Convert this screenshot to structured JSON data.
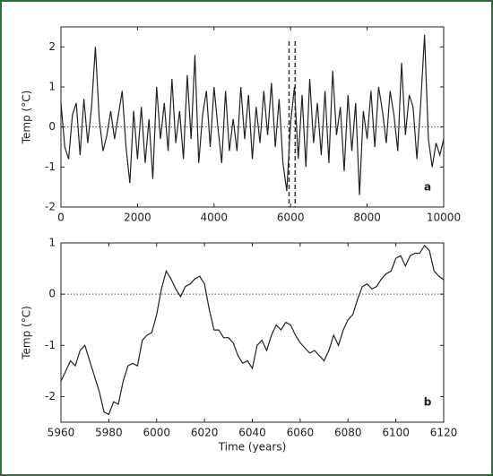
{
  "chart_data": [
    {
      "type": "line",
      "ylabel": "Temp (°C)",
      "panel_label": "a",
      "color": "#222222",
      "x": [
        0,
        100,
        200,
        300,
        400,
        500,
        600,
        700,
        800,
        900,
        1000,
        1100,
        1200,
        1300,
        1400,
        1500,
        1600,
        1700,
        1800,
        1900,
        2000,
        2100,
        2200,
        2300,
        2400,
        2500,
        2600,
        2700,
        2800,
        2900,
        3000,
        3100,
        3200,
        3300,
        3400,
        3500,
        3600,
        3700,
        3800,
        3900,
        4000,
        4100,
        4200,
        4300,
        4400,
        4500,
        4600,
        4700,
        4800,
        4900,
        5000,
        5100,
        5200,
        5300,
        5400,
        5500,
        5600,
        5700,
        5800,
        5900,
        6000,
        6100,
        6200,
        6300,
        6400,
        6500,
        6600,
        6700,
        6800,
        6900,
        7000,
        7100,
        7200,
        7300,
        7400,
        7500,
        7600,
        7700,
        7800,
        7900,
        8000,
        8100,
        8200,
        8300,
        8400,
        8500,
        8600,
        8700,
        8800,
        8900,
        9000,
        9100,
        9200,
        9300,
        9400,
        9500,
        9600,
        9700,
        9800,
        9900,
        10000
      ],
      "values": [
        0.6,
        -0.5,
        -0.8,
        0.3,
        0.6,
        -0.7,
        0.7,
        -0.4,
        0.5,
        2.0,
        0.2,
        -0.6,
        -0.2,
        0.4,
        -0.3,
        0.3,
        0.9,
        -0.5,
        -1.4,
        0.4,
        -0.8,
        0.5,
        -0.9,
        0.2,
        -1.3,
        1.0,
        -0.3,
        0.6,
        -0.6,
        1.2,
        -0.4,
        0.4,
        -0.8,
        1.3,
        -0.3,
        1.8,
        -0.9,
        0.3,
        0.9,
        -0.5,
        1.0,
        0.0,
        -0.9,
        0.9,
        -0.6,
        0.2,
        -0.6,
        1.0,
        -0.3,
        0.8,
        -0.8,
        0.5,
        -0.4,
        0.9,
        -0.2,
        1.1,
        -0.5,
        0.7,
        -0.9,
        -1.6,
        0.1,
        1.0,
        -0.8,
        0.8,
        -1.0,
        1.2,
        -0.4,
        0.6,
        -0.7,
        0.9,
        -0.9,
        1.4,
        -0.2,
        0.5,
        -1.1,
        0.8,
        -0.6,
        0.6,
        -1.7,
        0.4,
        -0.3,
        0.9,
        -0.5,
        1.0,
        0.4,
        -0.4,
        0.9,
        0.3,
        -0.6,
        1.6,
        -0.2,
        0.8,
        0.5,
        -0.8,
        0.6,
        2.3,
        -0.3,
        -1.0,
        -0.4,
        -0.7,
        -0.3
      ],
      "xlim": [
        0,
        10000
      ],
      "xticks": [
        0,
        2000,
        4000,
        6000,
        8000,
        10000
      ],
      "ylim": [
        -2,
        2.5
      ],
      "yticks": [
        -2,
        -1,
        0,
        1,
        2
      ],
      "reference_line": 0,
      "highlight_span": [
        5960,
        6120
      ]
    },
    {
      "type": "line",
      "ylabel": "Temp (°C)",
      "xlabel": "Time (years)",
      "panel_label": "b",
      "color": "#222222",
      "x": [
        5960,
        5962,
        5964,
        5966,
        5968,
        5970,
        5972,
        5974,
        5976,
        5978,
        5980,
        5982,
        5984,
        5986,
        5988,
        5990,
        5992,
        5994,
        5996,
        5998,
        6000,
        6002,
        6004,
        6006,
        6008,
        6010,
        6012,
        6014,
        6016,
        6018,
        6020,
        6022,
        6024,
        6026,
        6028,
        6030,
        6032,
        6034,
        6036,
        6038,
        6040,
        6042,
        6044,
        6046,
        6048,
        6050,
        6052,
        6054,
        6056,
        6058,
        6060,
        6062,
        6064,
        6066,
        6068,
        6070,
        6072,
        6074,
        6076,
        6078,
        6080,
        6082,
        6084,
        6086,
        6088,
        6090,
        6092,
        6094,
        6096,
        6098,
        6100,
        6102,
        6104,
        6106,
        6108,
        6110,
        6112,
        6114,
        6116,
        6118,
        6120
      ],
      "values": [
        -1.7,
        -1.5,
        -1.3,
        -1.4,
        -1.1,
        -1.0,
        -1.3,
        -1.6,
        -1.9,
        -2.3,
        -2.35,
        -2.1,
        -2.15,
        -1.7,
        -1.4,
        -1.35,
        -1.4,
        -0.9,
        -0.8,
        -0.75,
        -0.4,
        0.1,
        0.45,
        0.3,
        0.1,
        -0.05,
        0.15,
        0.2,
        0.3,
        0.35,
        0.2,
        -0.3,
        -0.7,
        -0.7,
        -0.85,
        -0.85,
        -0.95,
        -1.2,
        -1.35,
        -1.3,
        -1.45,
        -1.0,
        -0.9,
        -1.1,
        -0.8,
        -0.6,
        -0.7,
        -0.55,
        -0.6,
        -0.8,
        -0.95,
        -1.05,
        -1.15,
        -1.1,
        -1.2,
        -1.3,
        -1.1,
        -0.8,
        -1.0,
        -0.7,
        -0.5,
        -0.4,
        -0.1,
        0.15,
        0.2,
        0.1,
        0.15,
        0.3,
        0.4,
        0.45,
        0.7,
        0.75,
        0.55,
        0.75,
        0.8,
        0.8,
        0.95,
        0.85,
        0.45,
        0.35,
        0.28
      ],
      "xlim": [
        5960,
        6120
      ],
      "xticks": [
        5960,
        5980,
        6000,
        6020,
        6040,
        6060,
        6080,
        6100,
        6120
      ],
      "ylim": [
        -2.5,
        1
      ],
      "yticks": [
        -2,
        -1,
        0,
        1
      ],
      "reference_line": 0
    }
  ]
}
